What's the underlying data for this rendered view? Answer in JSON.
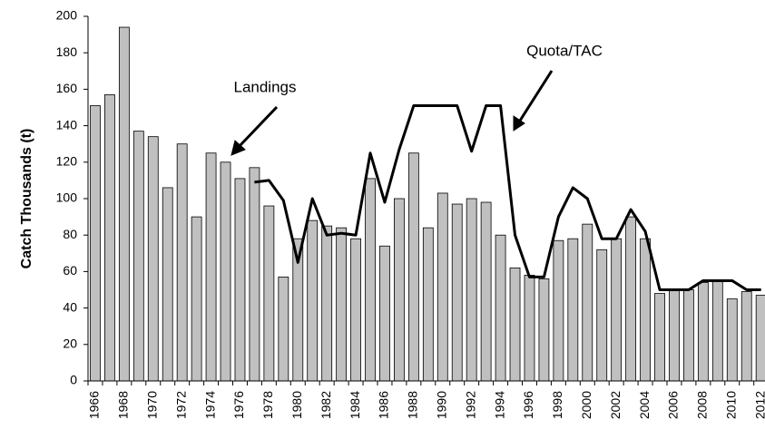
{
  "chart_data": {
    "type": "bar",
    "y_label": "Catch Thousands (t)",
    "categories": [
      "1966",
      null,
      "1968",
      null,
      "1970",
      null,
      "1972",
      null,
      "1974",
      null,
      "1976",
      null,
      "1978",
      null,
      "1980",
      null,
      "1982",
      null,
      "1984",
      null,
      "1986",
      null,
      "1988",
      null,
      "1990",
      null,
      "1992",
      null,
      "1994",
      null,
      "1996",
      null,
      "1998",
      null,
      "2000",
      null,
      "2002",
      null,
      "2004",
      null,
      "2006",
      null,
      "2008",
      null,
      "2010",
      null,
      "2012"
    ],
    "series": [
      {
        "name": "Landings",
        "type": "bar",
        "color": "#c0c0c0",
        "values": [
          151,
          157,
          194,
          137,
          134,
          106,
          130,
          90,
          125,
          120,
          111,
          117,
          96,
          57,
          78,
          88,
          85,
          84,
          78,
          111,
          74,
          100,
          125,
          84,
          103,
          97,
          100,
          98,
          80,
          62,
          58,
          56,
          77,
          78,
          86,
          72,
          78,
          90,
          78,
          48,
          50,
          50,
          54,
          55,
          45,
          49,
          47
        ]
      },
      {
        "name": "Quota/TAC",
        "type": "line",
        "color": "#000000",
        "values": [
          null,
          null,
          null,
          null,
          null,
          null,
          null,
          null,
          null,
          null,
          null,
          109,
          110,
          99,
          65,
          100,
          80,
          81,
          80,
          125,
          98,
          127,
          151,
          151,
          151,
          151,
          126,
          151,
          151,
          80,
          57,
          57,
          90,
          106,
          100,
          78,
          78,
          94,
          82,
          50,
          50,
          50,
          55,
          55,
          55,
          50,
          50
        ]
      }
    ],
    "ylim": [
      0,
      200
    ],
    "yticks": [
      0,
      20,
      40,
      60,
      80,
      100,
      120,
      140,
      160,
      180,
      200
    ],
    "grid": false
  }
}
